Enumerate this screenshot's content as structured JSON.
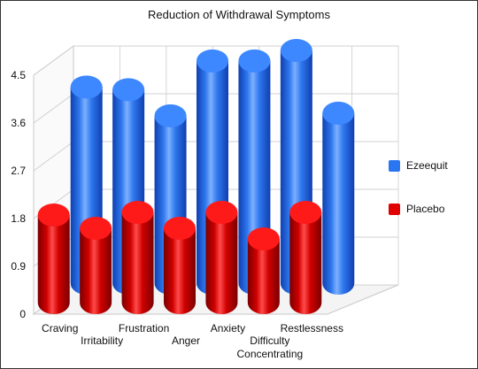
{
  "chart_data": {
    "type": "bar",
    "subtype": "3d-cylinder-grouped",
    "title": "Reduction of Withdrawal Symptoms",
    "categories": [
      "Craving",
      "Irritability",
      "Frustration",
      "Anger",
      "Anxiety",
      "Difficulty Concentrating",
      "Restlessness"
    ],
    "category_lines": [
      [
        "Craving"
      ],
      [
        "Irritability"
      ],
      [
        "Frustration"
      ],
      [
        "Anger"
      ],
      [
        "Anxiety"
      ],
      [
        "Difficulty",
        "Concentrating"
      ],
      [
        "Restlessness"
      ]
    ],
    "series": [
      {
        "name": "Ezeequit",
        "color": "#2a75f0",
        "values": [
          3.75,
          3.7,
          3.2,
          4.25,
          4.25,
          4.45,
          3.25
        ]
      },
      {
        "name": "Placebo",
        "color": "#e00000",
        "values": [
          1.65,
          1.4,
          1.7,
          1.4,
          1.7,
          1.2,
          1.7
        ]
      }
    ],
    "yticks": [
      "0",
      "0.9",
      "1.8",
      "2.7",
      "3.6",
      "4.5"
    ],
    "ylim": [
      0,
      4.5
    ],
    "grid": true,
    "legend_position": "right"
  }
}
